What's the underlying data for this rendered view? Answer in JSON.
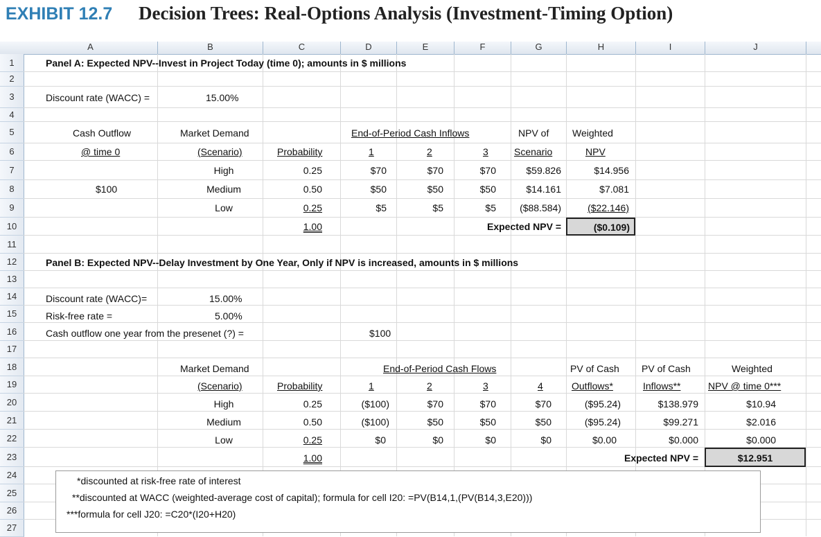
{
  "exhibit": {
    "label": "EXHIBIT 12.7",
    "title": "Decision Trees: Real-Options Analysis (Investment-Timing Option)"
  },
  "columns": [
    "A",
    "B",
    "C",
    "D",
    "E",
    "F",
    "G",
    "H",
    "I",
    "J"
  ],
  "rows": [
    "1",
    "2",
    "3",
    "4",
    "5",
    "6",
    "7",
    "8",
    "9",
    "10",
    "11",
    "12",
    "13",
    "14",
    "15",
    "16",
    "17",
    "18",
    "19",
    "20",
    "21",
    "22",
    "23",
    "24",
    "25",
    "26",
    "27"
  ],
  "panel_a": {
    "title": "Panel A: Expected NPV--Invest in Project Today (time 0); amounts in $ millions",
    "discount_label": "Discount rate (WACC) =",
    "discount_value": "15.00%",
    "hdr_cash_outflow": "Cash Outflow",
    "hdr_time0": "@ time 0",
    "hdr_market_demand": "Market Demand",
    "hdr_scenario": "(Scenario)",
    "hdr_probability": "Probability",
    "hdr_inflows": "End-of-Period Cash Inflows",
    "hdr_p1": "1",
    "hdr_p2": "2",
    "hdr_p3": "3",
    "hdr_npv_of": "NPV of",
    "hdr_npv_scenario": "Scenario",
    "hdr_weighted": "Weighted",
    "hdr_npv": "NPV",
    "outflow": "$100",
    "scenarios": [
      {
        "name": "High",
        "prob": "0.25",
        "c1": "$70",
        "c2": "$70",
        "c3": "$70",
        "npv": "$59.826",
        "wnpv": "$14.956"
      },
      {
        "name": "Medium",
        "prob": "0.50",
        "c1": "$50",
        "c2": "$50",
        "c3": "$50",
        "npv": "$14.161",
        "wnpv": "$7.081"
      },
      {
        "name": "Low",
        "prob": "0.25",
        "c1": "$5",
        "c2": "$5",
        "c3": "$5",
        "npv": "($88.584)",
        "wnpv": "($22.146)"
      }
    ],
    "prob_total": "1.00",
    "expected_label": "Expected NPV =",
    "expected_value": "($0.109)"
  },
  "panel_b": {
    "title": "Panel B: Expected NPV--Delay Investment by One Year, Only if NPV is increased, amounts in $ millions",
    "discount_label": "Discount rate (WACC)=",
    "discount_value": "15.00%",
    "riskfree_label": "Risk-free rate =",
    "riskfree_value": "5.00%",
    "outflow_label": "Cash outflow one year from the presenet (?) =",
    "outflow_value": "$100",
    "hdr_market_demand": "Market Demand",
    "hdr_scenario": "(Scenario)",
    "hdr_probability": "Probability",
    "hdr_flows": "End-of-Period Cash Flows",
    "hdr_p1": "1",
    "hdr_p2": "2",
    "hdr_p3": "3",
    "hdr_p4": "4",
    "hdr_pv_cash_out": "PV of Cash",
    "hdr_outflows": "Outflows*",
    "hdr_pv_cash_in": "PV of Cash",
    "hdr_inflows": "Inflows**",
    "hdr_weighted": "Weighted",
    "hdr_npv_time0": "NPV @ time 0***",
    "scenarios": [
      {
        "name": "High",
        "prob": "0.25",
        "c1": "($100)",
        "c2": "$70",
        "c3": "$70",
        "c4": "$70",
        "pvout": "($95.24)",
        "pvin": "$138.979",
        "wnpv": "$10.94"
      },
      {
        "name": "Medium",
        "prob": "0.50",
        "c1": "($100)",
        "c2": "$50",
        "c3": "$50",
        "c4": "$50",
        "pvout": "($95.24)",
        "pvin": "$99.271",
        "wnpv": "$2.016"
      },
      {
        "name": "Low",
        "prob": "0.25",
        "c1": "$0",
        "c2": "$0",
        "c3": "$0",
        "c4": "$0",
        "pvout": "$0.00",
        "pvin": "$0.000",
        "wnpv": "$0.000"
      }
    ],
    "prob_total": "1.00",
    "expected_label": "Expected NPV =",
    "expected_value": "$12.951"
  },
  "notes": {
    "n1": "*discounted at risk-free rate of interest",
    "n2": "**discounted at WACC (weighted-average cost of capital); formula for cell I20: =PV(B14,1,(PV(B14,3,E20)))",
    "n3": "***formula for cell J20: =C20*(I20+H20)"
  }
}
